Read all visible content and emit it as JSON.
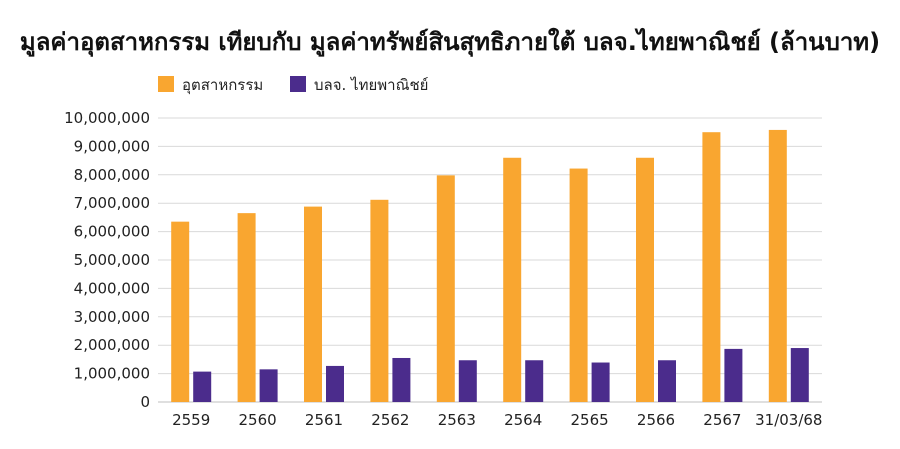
{
  "chart_data": {
    "type": "bar",
    "title": "มูลค่าอุตสาหกรรม เทียบกับ มูลค่าทรัพย์สินสุทธิภายใต้ บลจ.ไทยพาณิชย์ (ล้านบาท)",
    "xlabel": "",
    "ylabel": "",
    "categories": [
      "2559",
      "2560",
      "2561",
      "2562",
      "2563",
      "2564",
      "2565",
      "2566",
      "2567",
      "31/03/68"
    ],
    "series": [
      {
        "name": "อุตสาหกรรม",
        "color": "#F9A630",
        "values": [
          6350000,
          6650000,
          6880000,
          7120000,
          7980000,
          8600000,
          8220000,
          8600000,
          9500000,
          9580000
        ]
      },
      {
        "name": "บลจ. ไทยพาณิชย์",
        "color": "#4B2C8C",
        "values": [
          1070000,
          1150000,
          1270000,
          1550000,
          1470000,
          1470000,
          1390000,
          1470000,
          1870000,
          1900000
        ]
      }
    ],
    "ylim": [
      0,
      10000000
    ],
    "yticks": [
      0,
      1000000,
      2000000,
      3000000,
      4000000,
      5000000,
      6000000,
      7000000,
      8000000,
      9000000,
      10000000
    ],
    "ytick_labels": [
      "0",
      "1,000,000",
      "2,000,000",
      "3,000,000",
      "4,000,000",
      "5,000,000",
      "6,000,000",
      "7,000,000",
      "8,000,000",
      "9,000,000",
      "10,000,000"
    ],
    "grid": true,
    "legend_position": "top-left"
  }
}
